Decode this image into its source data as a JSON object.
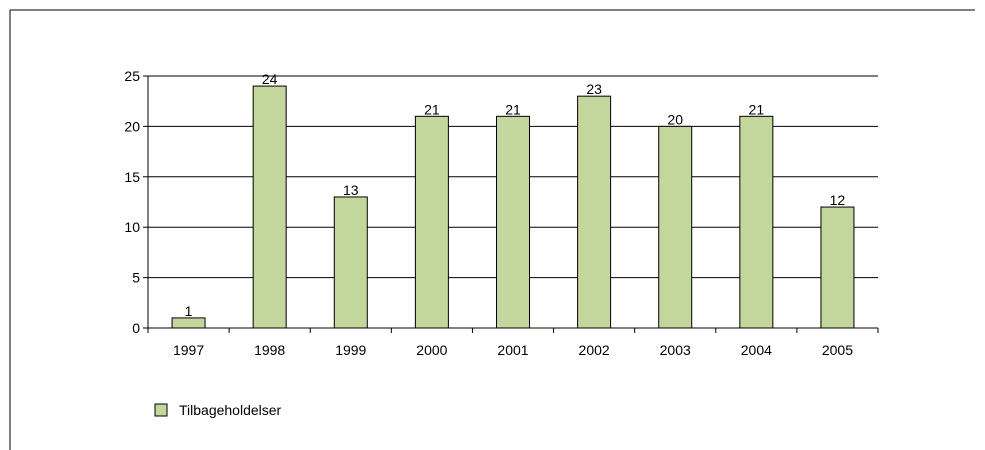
{
  "chart_data": {
    "type": "bar",
    "categories": [
      "1997",
      "1998",
      "1999",
      "2000",
      "2001",
      "2002",
      "2003",
      "2004",
      "2005"
    ],
    "series": [
      {
        "name": "Tilbageholdelser",
        "values": [
          1,
          24,
          13,
          21,
          21,
          23,
          20,
          21,
          12
        ]
      }
    ],
    "data_labels": [
      "1",
      "24",
      "13",
      "21",
      "21",
      "23",
      "20",
      "21",
      "12"
    ],
    "y_ticks": [
      "0",
      "5",
      "10",
      "15",
      "20",
      "25"
    ],
    "ylim": [
      0,
      25
    ],
    "y_gridlines": true,
    "legend_position": "bottom-left",
    "colors": {
      "bar_fill": "#c3d69b",
      "bar_stroke": "#000000",
      "grid": "#000000"
    }
  }
}
